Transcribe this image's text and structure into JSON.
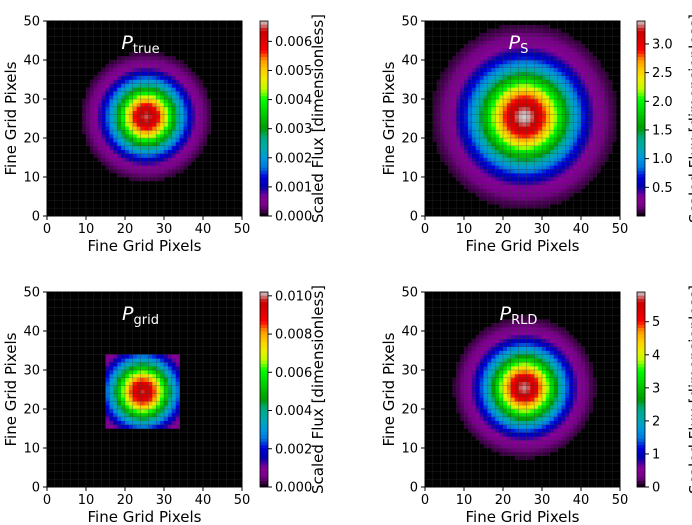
{
  "chart_data": [
    {
      "type": "heatmap",
      "panel": "top-left",
      "title_main": "P",
      "title_sub": "true",
      "xlabel": "Fine Grid Pixels",
      "ylabel": "Fine Grid Pixels",
      "xlim": [
        0,
        50
      ],
      "ylim": [
        0,
        50
      ],
      "xticks": [
        "0",
        "10",
        "20",
        "30",
        "40",
        "50"
      ],
      "yticks": [
        "0",
        "10",
        "20",
        "30",
        "40",
        "50"
      ],
      "shape": "gaussian-round",
      "center": [
        25.5,
        25.5
      ],
      "sigma": 6.0,
      "vmax": 0.0065,
      "peak": 0.0065,
      "colorbar_label": "Scaled Flux [dimensionless]",
      "colorbar_range": [
        0,
        0.0067
      ],
      "colorbar_ticks": [
        "0.000",
        "0.001",
        "0.002",
        "0.003",
        "0.004",
        "0.005",
        "0.006"
      ],
      "colorbar_tick_values": [
        0,
        0.001,
        0.002,
        0.003,
        0.004,
        0.005,
        0.006
      ]
    },
    {
      "type": "heatmap",
      "panel": "top-right",
      "title_main": "P",
      "title_sub": "S",
      "xlabel": "Fine Grid Pixels",
      "ylabel": "Fine Grid Pixels",
      "xlim": [
        0,
        50
      ],
      "ylim": [
        0,
        50
      ],
      "xticks": [
        "0",
        "10",
        "20",
        "30",
        "40",
        "50"
      ],
      "yticks": [
        "0",
        "10",
        "20",
        "30",
        "40",
        "50"
      ],
      "shape": "gaussian-round",
      "center": [
        25.5,
        25.5
      ],
      "sigma": 8.5,
      "vmax": 3.4,
      "peak": 3.4,
      "colorbar_label": "Scaled Flux [dimensionless]",
      "colorbar_range": [
        0,
        3.4
      ],
      "colorbar_ticks": [
        "0.5",
        "1.0",
        "1.5",
        "2.0",
        "2.5",
        "3.0"
      ],
      "colorbar_tick_values": [
        0.5,
        1.0,
        1.5,
        2.0,
        2.5,
        3.0
      ]
    },
    {
      "type": "heatmap",
      "panel": "bottom-left",
      "title_main": "P",
      "title_sub": "grid",
      "xlabel": "Fine Grid Pixels",
      "ylabel": "Fine Grid Pixels",
      "xlim": [
        0,
        50
      ],
      "ylim": [
        0,
        50
      ],
      "xticks": [
        "0",
        "10",
        "20",
        "30",
        "40",
        "50"
      ],
      "yticks": [
        "0",
        "10",
        "20",
        "30",
        "40",
        "50"
      ],
      "shape": "gaussian-box",
      "center": [
        24.5,
        24.5
      ],
      "sigma": 5.5,
      "box": [
        15.5,
        33.5
      ],
      "vmax": 0.01,
      "peak": 0.0098,
      "colorbar_label": "Scaled Flux [dimensionless]",
      "colorbar_range": [
        0,
        0.0102
      ],
      "colorbar_ticks": [
        "0.000",
        "0.002",
        "0.004",
        "0.006",
        "0.008",
        "0.010"
      ],
      "colorbar_tick_values": [
        0,
        0.002,
        0.004,
        0.006,
        0.008,
        0.01
      ]
    },
    {
      "type": "heatmap",
      "panel": "bottom-right",
      "title_main": "P",
      "title_sub": "RLD",
      "xlabel": "Fine Grid Pixels",
      "ylabel": "Fine Grid Pixels",
      "xlim": [
        0,
        50
      ],
      "ylim": [
        0,
        50
      ],
      "xticks": [
        "0",
        "10",
        "20",
        "30",
        "40",
        "50"
      ],
      "yticks": [
        "0",
        "10",
        "20",
        "30",
        "40",
        "50"
      ],
      "shape": "gaussian-round",
      "center": [
        25.5,
        25.5
      ],
      "sigma": 6.5,
      "vmax": 5.8,
      "peak": 5.8,
      "colorbar_label": "Scaled Flux [dimensionless]",
      "colorbar_range": [
        0,
        5.9
      ],
      "colorbar_ticks": [
        "0",
        "1",
        "2",
        "3",
        "4",
        "5"
      ],
      "colorbar_tick_values": [
        0,
        1,
        2,
        3,
        4,
        5
      ]
    }
  ]
}
